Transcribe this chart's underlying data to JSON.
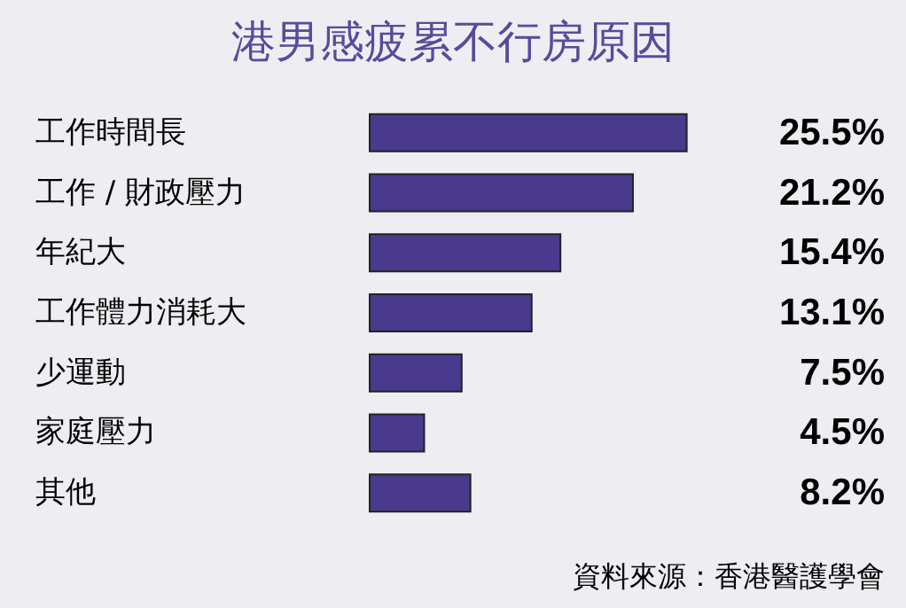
{
  "chart_data": {
    "type": "bar",
    "orientation": "horizontal",
    "title": "港男感疲累不行房原因",
    "categories": [
      "工作時間長",
      "工作 / 財政壓力",
      "年紀大",
      "工作體力消耗大",
      "少運動",
      "家庭壓力",
      "其他"
    ],
    "values": [
      25.5,
      21.2,
      15.4,
      13.1,
      7.5,
      4.5,
      8.2
    ],
    "value_labels": [
      "25.5%",
      "21.2%",
      "15.4%",
      "13.1%",
      "7.5%",
      "4.5%",
      "8.2%"
    ],
    "color": "#4a3a8e",
    "annotations": [
      "資料來源：香港醫護學會"
    ]
  }
}
